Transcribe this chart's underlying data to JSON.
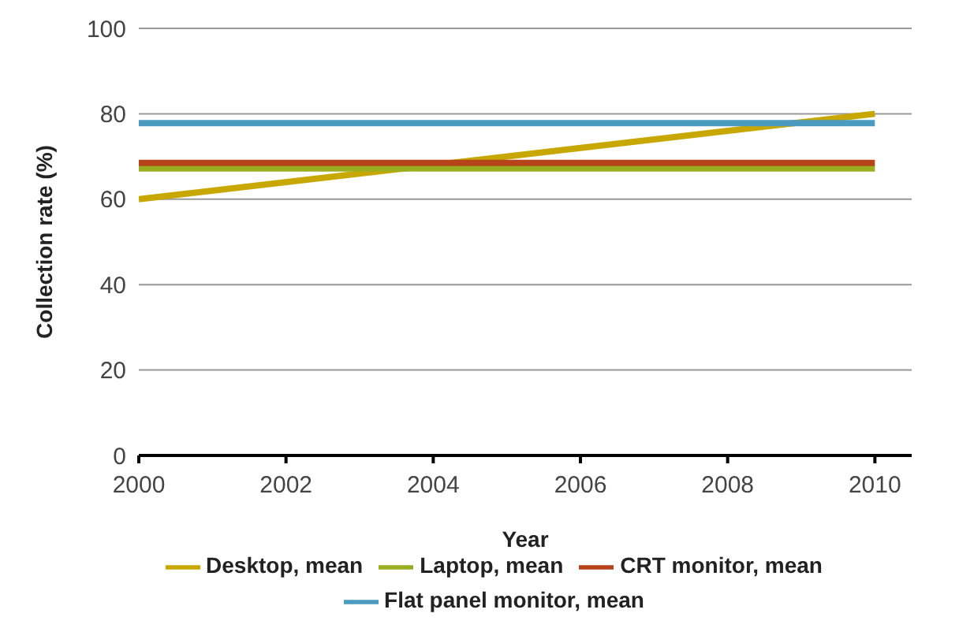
{
  "chart_data": {
    "type": "line",
    "xlabel": "Year",
    "ylabel": "Collection rate (%)",
    "x": [
      2000,
      2010
    ],
    "series": [
      {
        "name": "Desktop, mean",
        "color": "#c8a800",
        "values": [
          60,
          80
        ]
      },
      {
        "name": "Laptop, mean",
        "color": "#9aaf1f",
        "values": [
          67.2,
          67.2
        ]
      },
      {
        "name": "CRT monitor, mean",
        "color": "#b5441a",
        "values": [
          68.5,
          68.5
        ]
      },
      {
        "name": "Flat panel monitor, mean",
        "color": "#4a9bbf",
        "values": [
          77.8,
          77.8
        ]
      }
    ],
    "xlim": [
      2000,
      2010.5
    ],
    "xticks": [
      2000,
      2002,
      2004,
      2006,
      2008,
      2010
    ],
    "ylim": [
      0,
      100
    ],
    "yticks": [
      0,
      20,
      40,
      60,
      80,
      100
    ],
    "grid": "y",
    "legend": "bottom",
    "marker": "none",
    "line_style": "solid"
  }
}
